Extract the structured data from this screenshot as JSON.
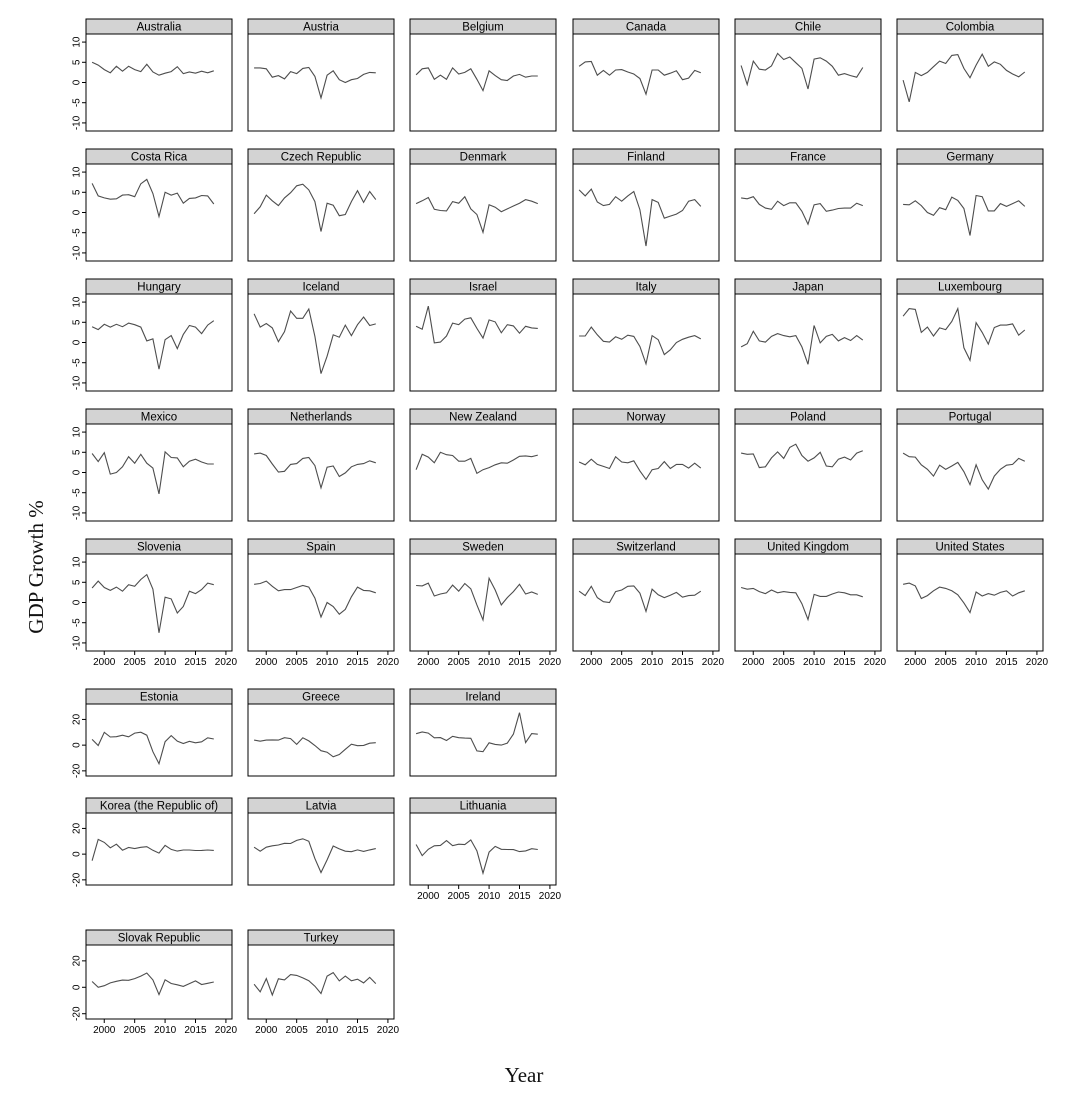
{
  "figure": {
    "ylabel": "GDP Growth %",
    "xlabel": "Year"
  },
  "colors": {
    "line": "#4d4d4d",
    "strip_fill": "#d3d3d3",
    "frame": "#000000"
  },
  "chart_data": {
    "type": "line",
    "x": [
      1998,
      1999,
      2000,
      2001,
      2002,
      2003,
      2004,
      2005,
      2006,
      2007,
      2008,
      2009,
      2010,
      2011,
      2012,
      2013,
      2014,
      2015,
      2016,
      2017,
      2018
    ],
    "xlim": [
      1997,
      2021
    ],
    "x_ticks": [
      2000,
      2005,
      2010,
      2015,
      2020
    ],
    "groups": [
      {
        "ylim": [
          -12,
          12
        ],
        "y_ticks": [
          10,
          5,
          0,
          -5,
          -10
        ],
        "panels": [
          {
            "name": "Australia",
            "values": [
              5,
              4.3,
              3.2,
              2.4,
              4,
              2.8,
              4,
              3.2,
              2.7,
              4.5,
              2.6,
              1.8,
              2.3,
              2.7,
              3.9,
              2.2,
              2.6,
              2.3,
              2.8,
              2.4,
              2.9
            ]
          },
          {
            "name": "Austria",
            "values": [
              3.6,
              3.6,
              3.4,
              1.3,
              1.7,
              0.9,
              2.7,
              2.2,
              3.5,
              3.7,
              1.5,
              -3.8,
              1.8,
              2.9,
              0.7,
              0.0,
              0.7,
              1.0,
              2.0,
              2.5,
              2.4
            ]
          },
          {
            "name": "Belgium",
            "values": [
              1.9,
              3.4,
              3.6,
              0.8,
              1.8,
              0.8,
              3.6,
              2.1,
              2.5,
              3.4,
              0.8,
              -2.0,
              2.9,
              1.7,
              0.7,
              0.5,
              1.6,
              2.0,
              1.3,
              1.6,
              1.6
            ]
          },
          {
            "name": "Canada",
            "values": [
              4.0,
              5.1,
              5.2,
              1.8,
              3.0,
              1.8,
              3.1,
              3.2,
              2.6,
              2.1,
              1.0,
              -2.9,
              3.1,
              3.1,
              1.8,
              2.3,
              2.9,
              0.7,
              1.1,
              3.0,
              2.4
            ]
          },
          {
            "name": "Chile",
            "values": [
              4.2,
              -0.5,
              5.3,
              3.3,
              3.1,
              4.1,
              7.2,
              5.7,
              6.3,
              4.9,
              3.5,
              -1.6,
              5.8,
              6.1,
              5.3,
              4.0,
              1.8,
              2.2,
              1.7,
              1.3,
              3.7
            ]
          },
          {
            "name": "Colombia",
            "values": [
              0.6,
              -4.8,
              2.5,
              1.7,
              2.5,
              3.9,
              5.3,
              4.7,
              6.7,
              6.9,
              3.5,
              1.2,
              4.3,
              7.0,
              4.0,
              5.1,
              4.5,
              3.0,
              2.1,
              1.4,
              2.6
            ]
          },
          {
            "name": "Costa Rica",
            "values": [
              7.2,
              4.1,
              3.6,
              3.3,
              3.4,
              4.3,
              4.4,
              3.9,
              7.1,
              8.2,
              4.7,
              -1.0,
              5.0,
              4.3,
              4.8,
              2.3,
              3.5,
              3.6,
              4.2,
              4.1,
              2.1
            ]
          },
          {
            "name": "Czech Republic",
            "values": [
              -0.3,
              1.4,
              4.3,
              2.9,
              1.7,
              3.6,
              4.9,
              6.6,
              7.0,
              5.6,
              2.7,
              -4.7,
              2.3,
              1.8,
              -0.8,
              -0.5,
              2.7,
              5.4,
              2.5,
              5.2,
              3.2
            ]
          },
          {
            "name": "Denmark",
            "values": [
              2.2,
              2.9,
              3.7,
              0.8,
              0.5,
              0.4,
              2.7,
              2.3,
              3.9,
              0.9,
              -0.5,
              -4.9,
              1.9,
              1.3,
              0.2,
              0.9,
              1.6,
              2.3,
              3.2,
              2.8,
              2.2
            ]
          },
          {
            "name": "Finland",
            "values": [
              5.6,
              4.1,
              5.8,
              2.6,
              1.7,
              2.0,
              3.9,
              2.8,
              4.1,
              5.2,
              0.7,
              -8.3,
              3.2,
              2.5,
              -1.4,
              -0.9,
              -0.4,
              0.5,
              2.8,
              3.2,
              1.5
            ]
          },
          {
            "name": "France",
            "values": [
              3.6,
              3.4,
              3.9,
              2.0,
              1.1,
              0.8,
              2.8,
              1.7,
              2.4,
              2.4,
              0.3,
              -2.9,
              1.9,
              2.2,
              0.3,
              0.6,
              1.0,
              1.1,
              1.1,
              2.3,
              1.7
            ]
          },
          {
            "name": "Germany",
            "values": [
              2.0,
              1.9,
              2.9,
              1.7,
              0.0,
              -0.7,
              1.2,
              0.7,
              3.8,
              3.0,
              1.0,
              -5.7,
              4.2,
              3.9,
              0.4,
              0.4,
              2.2,
              1.5,
              2.2,
              2.9,
              1.5
            ]
          },
          {
            "name": "Hungary",
            "values": [
              3.9,
              3.2,
              4.5,
              3.8,
              4.5,
              3.9,
              4.8,
              4.4,
              3.8,
              0.4,
              0.9,
              -6.6,
              0.7,
              1.7,
              -1.5,
              2.0,
              4.2,
              3.8,
              2.2,
              4.3,
              5.4
            ]
          },
          {
            "name": "Iceland",
            "values": [
              7.1,
              3.8,
              4.7,
              3.6,
              0.2,
              2.7,
              7.8,
              6.0,
              6.0,
              8.3,
              1.5,
              -7.7,
              -3.4,
              1.9,
              1.3,
              4.3,
              1.7,
              4.4,
              6.3,
              4.2,
              4.6
            ]
          },
          {
            "name": "Israel",
            "values": [
              4.0,
              3.3,
              9.0,
              -0.1,
              0.1,
              1.6,
              4.8,
              4.4,
              5.8,
              6.1,
              3.5,
              1.1,
              5.6,
              5.1,
              2.4,
              4.4,
              4.1,
              2.3,
              4.0,
              3.6,
              3.5
            ]
          },
          {
            "name": "Italy",
            "values": [
              1.6,
              1.6,
              3.8,
              1.9,
              0.3,
              0.1,
              1.4,
              0.8,
              1.8,
              1.5,
              -1.0,
              -5.3,
              1.7,
              0.7,
              -3.0,
              -1.8,
              0.0,
              0.8,
              1.3,
              1.7,
              0.9
            ]
          },
          {
            "name": "Japan",
            "values": [
              -1.1,
              -0.3,
              2.8,
              0.4,
              0.1,
              1.5,
              2.2,
              1.7,
              1.4,
              1.7,
              -1.1,
              -5.4,
              4.2,
              -0.1,
              1.5,
              2.0,
              0.4,
              1.2,
              0.5,
              1.7,
              0.6
            ]
          },
          {
            "name": "Luxembourg",
            "values": [
              6.5,
              8.4,
              8.2,
              2.5,
              3.8,
              1.6,
              3.6,
              3.2,
              5.2,
              8.4,
              -1.3,
              -4.4,
              4.9,
              2.5,
              -0.4,
              3.7,
              4.3,
              4.3,
              4.6,
              1.8,
              3.1
            ]
          },
          {
            "name": "Mexico",
            "values": [
              4.7,
              2.7,
              4.9,
              -0.4,
              0.0,
              1.4,
              3.9,
              2.3,
              4.5,
              2.3,
              1.1,
              -5.3,
              5.1,
              3.7,
              3.6,
              1.4,
              2.8,
              3.3,
              2.6,
              2.1,
              2.1
            ]
          },
          {
            "name": "Netherlands",
            "values": [
              4.6,
              4.8,
              4.2,
              2.1,
              0.1,
              0.3,
              2.0,
              2.2,
              3.5,
              3.7,
              1.7,
              -3.8,
              1.3,
              1.6,
              -1.0,
              -0.1,
              1.4,
              2.0,
              2.2,
              2.9,
              2.4
            ]
          },
          {
            "name": "New Zealand",
            "values": [
              0.7,
              4.5,
              3.8,
              2.4,
              5.0,
              4.4,
              4.2,
              2.8,
              2.8,
              3.5,
              -0.2,
              0.7,
              1.2,
              1.9,
              2.4,
              2.3,
              3.1,
              4.0,
              4.1,
              3.9,
              4.3
            ]
          },
          {
            "name": "Norway",
            "values": [
              2.6,
              1.9,
              3.3,
              2.0,
              1.5,
              1.0,
              3.9,
              2.6,
              2.4,
              2.9,
              0.4,
              -1.7,
              0.7,
              1.0,
              2.7,
              1.0,
              2.0,
              2.0,
              1.1,
              2.3,
              1.1
            ]
          },
          {
            "name": "Poland",
            "values": [
              4.8,
              4.5,
              4.6,
              1.2,
              1.4,
              3.6,
              5.1,
              3.5,
              6.2,
              7.0,
              4.2,
              2.8,
              3.6,
              5.0,
              1.6,
              1.4,
              3.3,
              3.8,
              3.1,
              4.8,
              5.4
            ]
          },
          {
            "name": "Portugal",
            "values": [
              4.8,
              3.9,
              3.8,
              1.9,
              0.8,
              -0.9,
              1.8,
              0.8,
              1.6,
              2.5,
              0.2,
              -3.0,
              1.9,
              -1.8,
              -4.1,
              -0.9,
              0.8,
              1.8,
              2.0,
              3.5,
              2.8
            ]
          },
          {
            "name": "Slovenia",
            "values": [
              3.6,
              5.3,
              3.7,
              3.0,
              3.8,
              2.8,
              4.4,
              4.0,
              5.7,
              6.9,
              3.3,
              -7.5,
              1.3,
              0.9,
              -2.6,
              -1.0,
              2.8,
              2.2,
              3.2,
              4.8,
              4.4
            ]
          },
          {
            "name": "Spain",
            "values": [
              4.5,
              4.7,
              5.3,
              4.0,
              2.9,
              3.2,
              3.2,
              3.7,
              4.2,
              3.8,
              1.1,
              -3.6,
              0.0,
              -1.0,
              -2.9,
              -1.7,
              1.4,
              3.8,
              3.0,
              2.9,
              2.4
            ]
          },
          {
            "name": "Sweden",
            "values": [
              4.2,
              4.1,
              4.8,
              1.6,
              2.1,
              2.4,
              4.3,
              2.8,
              4.7,
              3.4,
              -0.6,
              -4.3,
              6.0,
              3.1,
              -0.6,
              1.2,
              2.7,
              4.5,
              2.1,
              2.6,
              2.0
            ]
          },
          {
            "name": "Switzerland",
            "values": [
              2.8,
              1.7,
              4.0,
              1.2,
              0.2,
              0.0,
              2.7,
              3.1,
              4.0,
              4.1,
              2.3,
              -2.2,
              3.3,
              1.9,
              1.2,
              1.8,
              2.5,
              1.3,
              1.7,
              1.8,
              2.8
            ]
          },
          {
            "name": "United Kingdom",
            "values": [
              3.7,
              3.3,
              3.5,
              2.7,
              2.2,
              3.1,
              2.4,
              2.7,
              2.5,
              2.4,
              -0.3,
              -4.2,
              2.0,
              1.5,
              1.5,
              2.1,
              2.6,
              2.4,
              1.9,
              1.9,
              1.4
            ]
          },
          {
            "name": "United States",
            "values": [
              4.5,
              4.8,
              4.1,
              1.0,
              1.7,
              2.9,
              3.8,
              3.5,
              2.9,
              1.9,
              -0.1,
              -2.5,
              2.6,
              1.6,
              2.2,
              1.8,
              2.5,
              2.9,
              1.6,
              2.4,
              2.9
            ]
          }
        ]
      },
      {
        "ylim": [
          -24,
          32
        ],
        "y_ticks": [
          20,
          0,
          -20
        ],
        "panels": [
          {
            "name": "Estonia",
            "values": [
              4.5,
              -0.3,
              10.0,
              6.3,
              6.6,
              7.7,
              6.5,
              9.4,
              10.1,
              7.7,
              -5.1,
              -14.4,
              2.7,
              7.4,
              3.1,
              1.3,
              3.0,
              1.8,
              2.6,
              5.7,
              4.8
            ]
          },
          {
            "name": "Greece",
            "values": [
              3.9,
              3.1,
              3.9,
              4.1,
              3.9,
              5.8,
              5.1,
              0.6,
              5.7,
              3.3,
              -0.3,
              -4.3,
              -5.5,
              -9.1,
              -7.3,
              -3.2,
              0.7,
              -0.4,
              -0.2,
              1.5,
              1.9
            ]
          },
          {
            "name": "Ireland",
            "values": [
              8.9,
              10.2,
              9.4,
              5.7,
              5.9,
              3.6,
              6.9,
              5.8,
              5.5,
              5.3,
              -4.5,
              -5.1,
              1.8,
              0.6,
              0.0,
              1.6,
              8.6,
              25.2,
              2.0,
              9.0,
              8.5
            ]
          },
          {
            "name": "Korea (the Republic of)",
            "values": [
              -5.1,
              11.5,
              9.1,
              4.9,
              7.7,
              3.1,
              5.2,
              4.3,
              5.3,
              5.8,
              3.0,
              0.8,
              6.8,
              3.7,
              2.4,
              3.2,
              3.2,
              2.8,
              2.9,
              3.2,
              2.9
            ]
          },
          {
            "name": "Latvia",
            "values": [
              5.4,
              2.3,
              5.4,
              6.5,
              7.1,
              8.4,
              8.3,
              10.7,
              11.9,
              10.0,
              -3.5,
              -14.3,
              -4.5,
              6.3,
              4.1,
              2.3,
              1.9,
              3.3,
              2.1,
              3.3,
              4.3
            ]
          },
          {
            "name": "Lithuania",
            "values": [
              7.5,
              -1.1,
              3.8,
              6.5,
              6.8,
              10.5,
              6.6,
              7.7,
              7.4,
              11.1,
              2.6,
              -14.8,
              1.6,
              6.0,
              3.8,
              3.6,
              3.5,
              2.0,
              2.5,
              4.2,
              3.6
            ]
          },
          {
            "name": "Slovak Republic",
            "values": [
              4.4,
              0.0,
              1.2,
              3.3,
              4.5,
              5.4,
              5.3,
              6.6,
              8.5,
              10.8,
              5.6,
              -5.5,
              5.7,
              2.9,
              1.9,
              0.7,
              2.8,
              4.8,
              2.1,
              3.0,
              4.0
            ]
          },
          {
            "name": "Turkey",
            "values": [
              2.3,
              -3.4,
              6.6,
              -5.8,
              6.4,
              5.6,
              9.6,
              9.0,
              7.1,
              5.0,
              0.8,
              -4.7,
              8.5,
              11.1,
              4.8,
              8.5,
              4.9,
              6.1,
              3.3,
              7.5,
              2.8
            ]
          }
        ]
      }
    ]
  }
}
